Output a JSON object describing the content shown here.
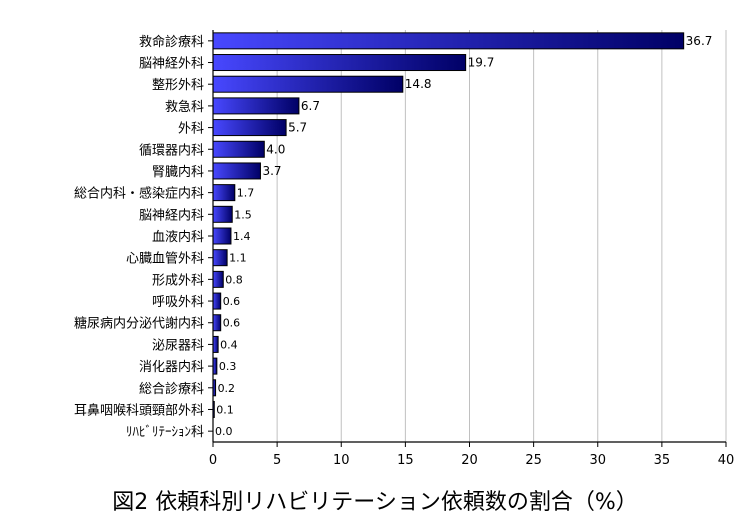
{
  "chart_data": {
    "type": "bar",
    "orientation": "horizontal",
    "categories": [
      "救命診療科",
      "脳神経外科",
      "整形外科",
      "救急科",
      "外科",
      "循環器内科",
      "腎臓内科",
      "総合内科・感染症内科",
      "脳神経内科",
      "血液内科",
      "心臓血管外科",
      "形成外科",
      "呼吸外科",
      "糖尿病内分泌代謝内科",
      "泌尿器科",
      "消化器内科",
      "総合診療科",
      "耳鼻咽喉科頭頸部外科",
      "ﾘﾊﾋﾞﾘﾃｰｼｮﾝ科"
    ],
    "values": [
      36.7,
      19.7,
      14.8,
      6.7,
      5.7,
      4.0,
      3.7,
      1.7,
      1.5,
      1.4,
      1.1,
      0.8,
      0.6,
      0.6,
      0.4,
      0.3,
      0.2,
      0.1,
      0.0
    ],
    "value_labels": [
      "36.7",
      "19.7",
      "14.8",
      "6.7",
      "5.7",
      "4.0",
      "3.7",
      "1.7",
      "1.5",
      "1.4",
      "1.1",
      "0.8",
      "0.6",
      "0.6",
      "0.4",
      "0.3",
      "0.2",
      "0.1",
      "0.0"
    ],
    "xlim": [
      0,
      40
    ],
    "xticks": [
      0,
      5,
      10,
      15,
      20,
      25,
      30,
      35,
      40
    ],
    "grid": "vertical",
    "bar_color_light": "#4848ff",
    "bar_color_dark": "#000066",
    "grid_color": "#c0c0c0",
    "caption": "図2  依頼科別リハビリテーション依頼数の割合（%）"
  }
}
